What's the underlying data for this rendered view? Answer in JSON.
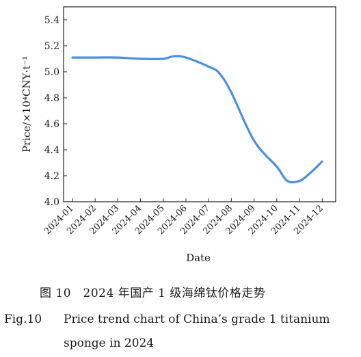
{
  "chart_data": {
    "type": "line",
    "xlabel": "Date",
    "ylabel": "Price/×10⁴CNY·t⁻¹",
    "ylim": [
      4.0,
      5.5
    ],
    "yticks": [
      4.0,
      4.2,
      4.4,
      4.6,
      4.8,
      5.0,
      5.2,
      5.4
    ],
    "ytick_labels": [
      "4.0",
      "4.2",
      "4.4",
      "4.6",
      "4.8",
      "5.0",
      "5.2",
      "5.4"
    ],
    "xticks": [
      "2024-01",
      "2024-02",
      "2024-03",
      "2024-04",
      "2024-05",
      "2024-06",
      "2024-07",
      "2024-08",
      "2024-09",
      "2024-10",
      "2024-11",
      "2024-12"
    ],
    "grid": false,
    "line_color": "#4a8ee6",
    "series": [
      {
        "x": [
          "2024-01",
          "2024-02",
          "2024-03",
          "2024-04",
          "2024-05",
          "2024-05-15",
          "2024-06",
          "2024-07",
          "2024-07-15",
          "2024-08",
          "2024-09",
          "2024-10",
          "2024-10-15",
          "2024-11",
          "2024-11-15",
          "2024-12"
        ],
        "values": [
          5.11,
          5.11,
          5.11,
          5.1,
          5.1,
          5.12,
          5.11,
          5.04,
          4.99,
          4.84,
          4.47,
          4.27,
          4.16,
          4.16,
          4.22,
          4.31
        ]
      }
    ]
  },
  "captions": {
    "cn": "图 10　2024 年国产 1 级海绵钛价格走势",
    "en_label": "Fig.10",
    "en_text_line1": "Price trend chart of China’s grade 1 titanium",
    "en_text_line2": "sponge in 2024"
  }
}
